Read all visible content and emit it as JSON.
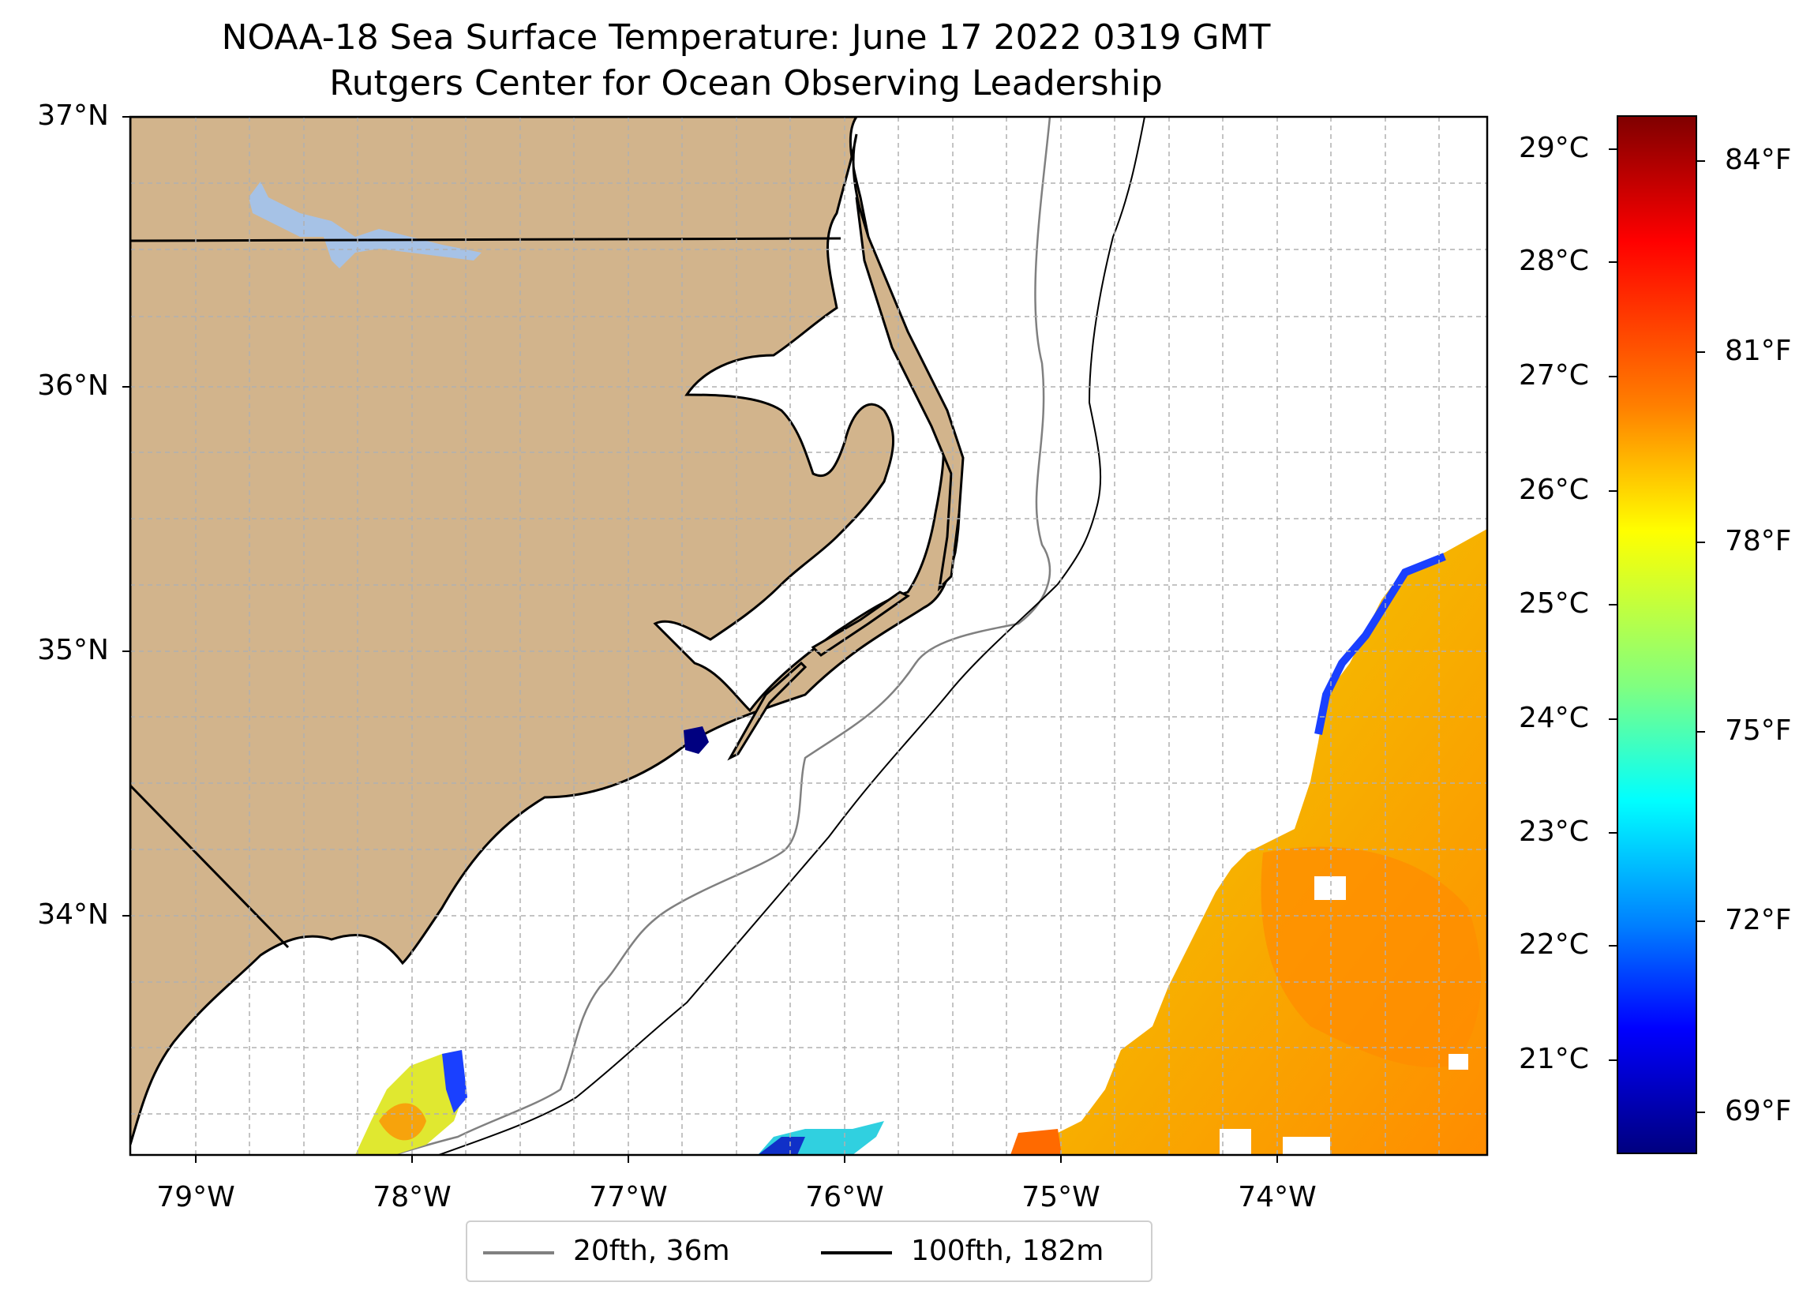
{
  "title": {
    "line1": "NOAA-18 Sea Surface Temperature: June 17 2022 0319 GMT",
    "line2": "Rutgers Center for Ocean Observing Leadership"
  },
  "map": {
    "lat_labels": [
      "37°N",
      "36°N",
      "35°N",
      "34°N"
    ],
    "lon_labels": [
      "79°W",
      "78°W",
      "77°W",
      "76°W",
      "75°W",
      "74°W"
    ],
    "land_color": "#d2b48c",
    "water_inland_color": "#a6c2e6",
    "extent": {
      "lon_min": -79.3,
      "lon_max": -73.1,
      "lat_min": 33.1,
      "lat_max": 37.0
    }
  },
  "colorbar": {
    "celsius_labels": [
      "29°C",
      "28°C",
      "27°C",
      "26°C",
      "25°C",
      "24°C",
      "23°C",
      "22°C",
      "21°C"
    ],
    "fahrenheit_labels": [
      "84°F",
      "81°F",
      "78°F",
      "75°F",
      "72°F",
      "69°F"
    ],
    "colormap": "jet",
    "range_c": [
      20.2,
      29.3
    ]
  },
  "legend": {
    "items": [
      {
        "label": "20fth, 36m",
        "color": "#808080"
      },
      {
        "label": "100fth, 182m",
        "color": "#000000"
      }
    ]
  }
}
